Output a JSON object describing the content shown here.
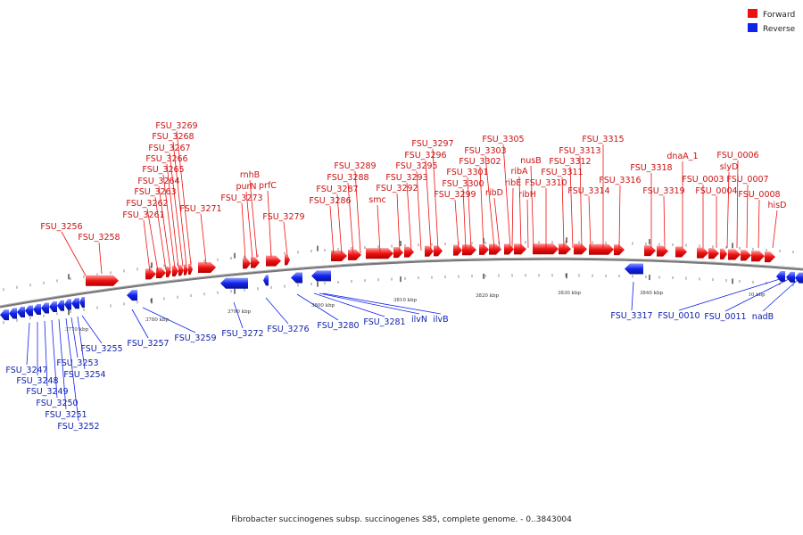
{
  "legend": [
    {
      "label": "Forward",
      "color": "#ee1111"
    },
    {
      "label": "Reverse",
      "color": "#1122ee"
    }
  ],
  "colors": {
    "forward": "#ee1111",
    "reverse": "#1122ee",
    "backbone": "#777777"
  },
  "caption": "Fibrobacter succinogenes subsp. succinogenes S85, complete genome. - 0..3843004",
  "ticks": [
    "3770 kbp",
    "3780 kbp",
    "3790 kbp",
    "3800 kbp",
    "3810 kbp",
    "3820 kbp",
    "3830 kbp",
    "3840 kbp",
    "10 kbp"
  ],
  "forward_labels": [
    "FSU_3256",
    "FSU_3258",
    "FSU_3261",
    "FSU_3262",
    "FSU_3263",
    "FSU_3264",
    "FSU_3265",
    "FSU_3266",
    "FSU_3267",
    "FSU_3268",
    "FSU_3269",
    "FSU_3271",
    "FSU_3273",
    "purN",
    "rnhB",
    "prfC",
    "FSU_3279",
    "FSU_3286",
    "FSU_3287",
    "FSU_3288",
    "FSU_3289",
    "smc",
    "FSU_3292",
    "FSU_3293",
    "FSU_3295",
    "FSU_3296",
    "FSU_3297",
    "FSU_3299",
    "FSU_3300",
    "FSU_3301",
    "FSU_3302",
    "FSU_3303",
    "FSU_3305",
    "ribD",
    "ribE",
    "ribA",
    "ribH",
    "nusB",
    "FSU_3310",
    "FSU_3311",
    "FSU_3312",
    "FSU_3313",
    "FSU_3314",
    "FSU_3315",
    "FSU_3316",
    "FSU_3318",
    "FSU_3319",
    "dnaA_1",
    "FSU_0003",
    "FSU_0004",
    "slyD",
    "FSU_0006",
    "FSU_0007",
    "FSU_0008",
    "hisD"
  ],
  "reverse_labels": [
    "FSU_3247",
    "FSU_3248",
    "FSU_3249",
    "FSU_3250",
    "FSU_3251",
    "FSU_3252",
    "FSU_3253",
    "FSU_3254",
    "FSU_3255",
    "FSU_3257",
    "FSU_3259",
    "FSU_3272",
    "FSU_3276",
    "FSU_3280",
    "FSU_3281",
    "ilvN",
    "ilvB",
    "FSU_3317",
    "FSU_0010",
    "FSU_0011",
    "nadB"
  ]
}
